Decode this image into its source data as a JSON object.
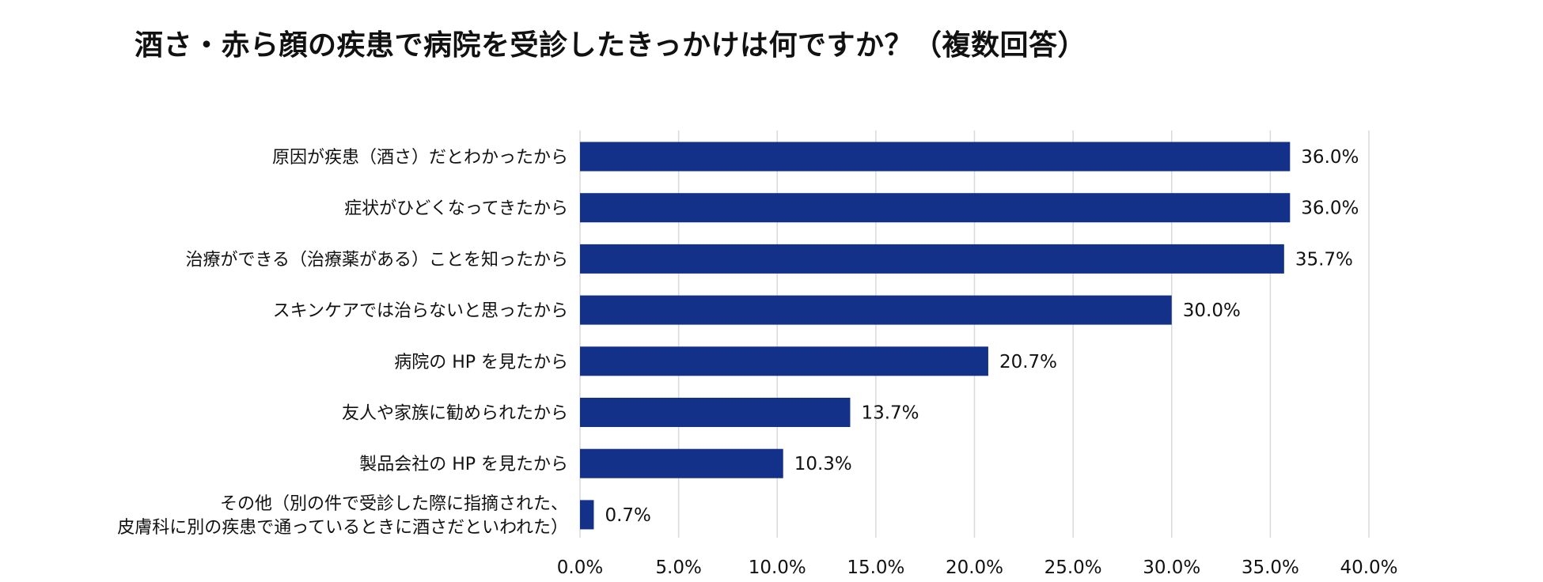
{
  "chart_data": {
    "type": "bar",
    "orientation": "horizontal",
    "title": "酒さ・赤ら顔の疾患で病院を受診したきっかけは何ですか？（複数回答）",
    "categories": [
      "原因が疾患（酒さ）だとわかったから",
      "症状がひどくなってきたから",
      "治療ができる（治療薬がある）ことを知ったから",
      "スキンケアでは治らないと思ったから",
      "病院の HP を見たから",
      "友人や家族に勧められたから",
      "製品会社の HP を見たから",
      "その他（別の件で受診した際に指摘された、皮膚科に別の疾患で通っているときに酒さだといわれた）"
    ],
    "category_lines": [
      [
        "原因が疾患（酒さ）だとわかったから"
      ],
      [
        "症状がひどくなってきたから"
      ],
      [
        "治療ができる（治療薬がある）ことを知ったから"
      ],
      [
        "スキンケアでは治らないと思ったから"
      ],
      [
        "病院の HP を見たから"
      ],
      [
        "友人や家族に勧められたから"
      ],
      [
        "製品会社の HP を見たから"
      ],
      [
        "その他（別の件で受診した際に指摘された、",
        "皮膚科に別の疾患で通っているときに酒さだといわれた）"
      ]
    ],
    "values": [
      36.0,
      36.0,
      35.7,
      30.0,
      20.7,
      13.7,
      10.3,
      0.7
    ],
    "value_labels": [
      "36.0%",
      "36.0%",
      "35.7%",
      "30.0%",
      "20.7%",
      "13.7%",
      "10.3%",
      "0.7%"
    ],
    "xlim": [
      0,
      40
    ],
    "x_ticks": [
      0,
      5,
      10,
      15,
      20,
      25,
      30,
      35,
      40
    ],
    "x_tick_labels": [
      "0.0%",
      "5.0%",
      "10.0%",
      "15.0%",
      "20.0%",
      "25.0%",
      "30.0%",
      "35.0%",
      "40.0%"
    ],
    "xlabel": "",
    "ylabel": "",
    "grid": "vertical",
    "legend": "none",
    "bar_color": "#14318A",
    "grid_color": "#D9D9D9"
  }
}
